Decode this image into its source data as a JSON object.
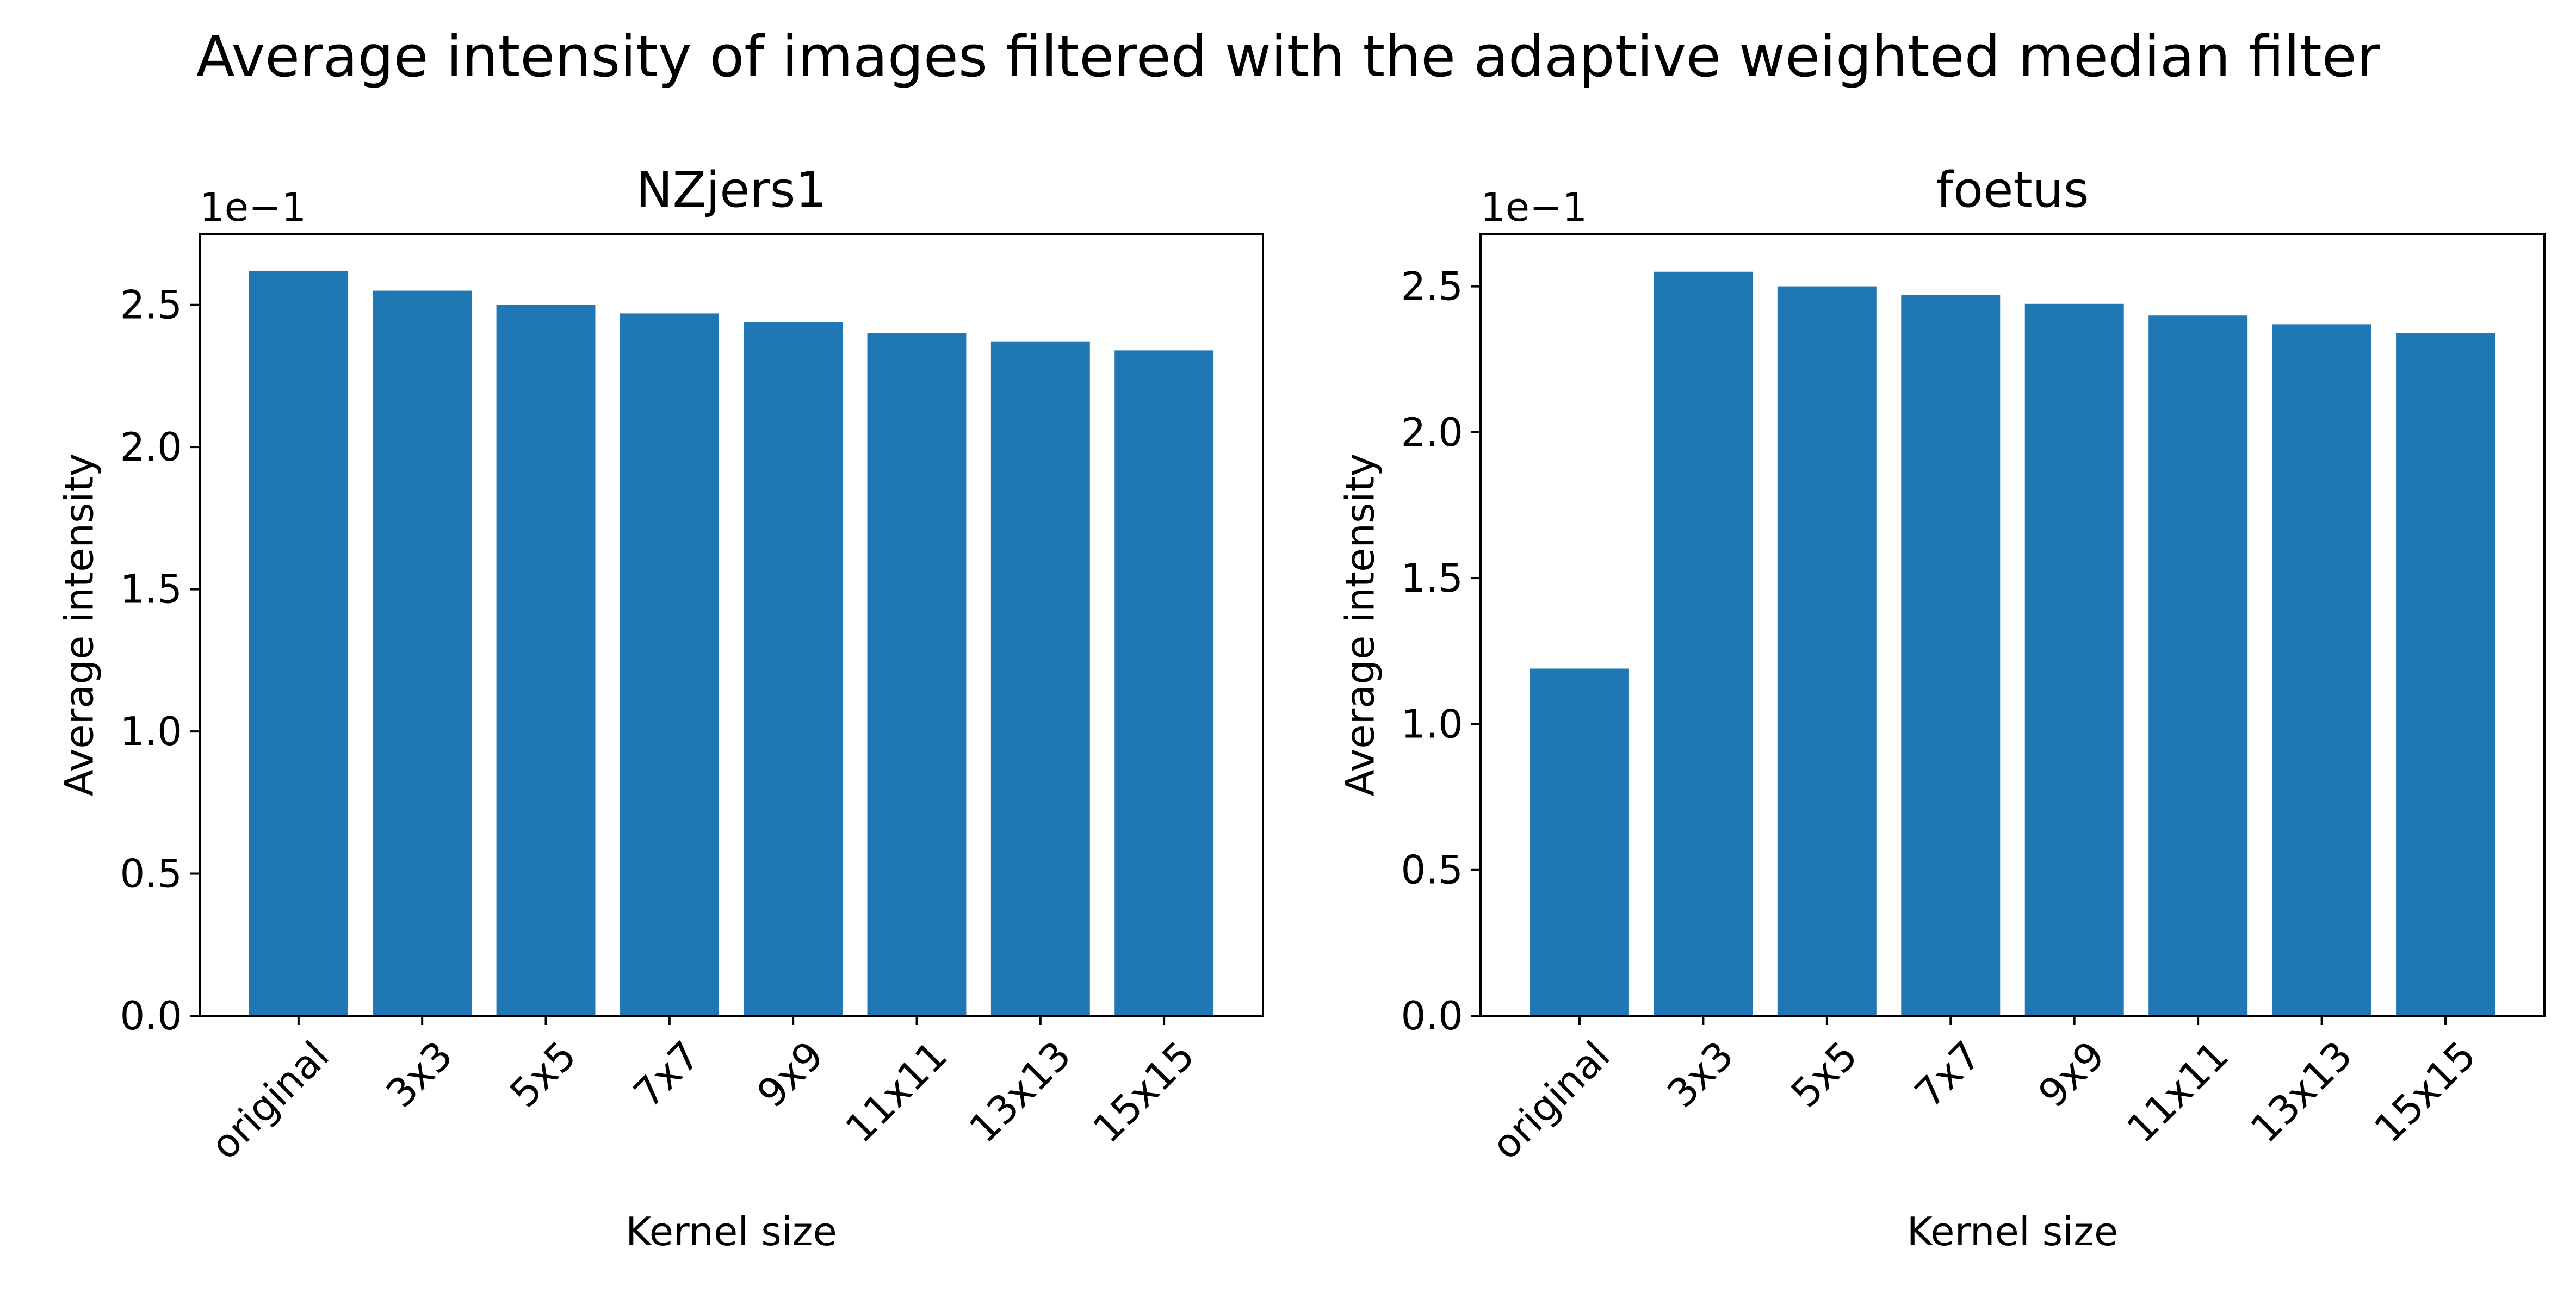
{
  "figure": {
    "suptitle": "Average intensity of images filtered with the adaptive weighted median filter"
  },
  "chart_data": [
    {
      "type": "bar",
      "title": "NZjers1",
      "xlabel": "Kernel size",
      "ylabel": "Average intensity",
      "offset_text": "1e−1",
      "categories": [
        "original",
        "3x3",
        "5x5",
        "7x7",
        "9x9",
        "11x11",
        "13x13",
        "15x15"
      ],
      "values": [
        2.62,
        2.55,
        2.5,
        2.47,
        2.44,
        2.4,
        2.37,
        2.34
      ],
      "ylim": [
        0,
        2.75
      ],
      "yticks": [
        "0.0",
        "0.5",
        "1.0",
        "1.5",
        "2.0",
        "2.5"
      ],
      "bar_color": "#1f77b4",
      "grid": false
    },
    {
      "type": "bar",
      "title": "foetus",
      "xlabel": "Kernel size",
      "ylabel": "Average intensity",
      "offset_text": "1e−1",
      "categories": [
        "original",
        "3x3",
        "5x5",
        "7x7",
        "9x9",
        "11x11",
        "13x13",
        "15x15"
      ],
      "values": [
        1.19,
        2.55,
        2.5,
        2.47,
        2.44,
        2.4,
        2.37,
        2.34
      ],
      "ylim": [
        0,
        2.68
      ],
      "yticks": [
        "0.0",
        "0.5",
        "1.0",
        "1.5",
        "2.0",
        "2.5"
      ],
      "bar_color": "#1f77b4",
      "grid": false
    }
  ]
}
